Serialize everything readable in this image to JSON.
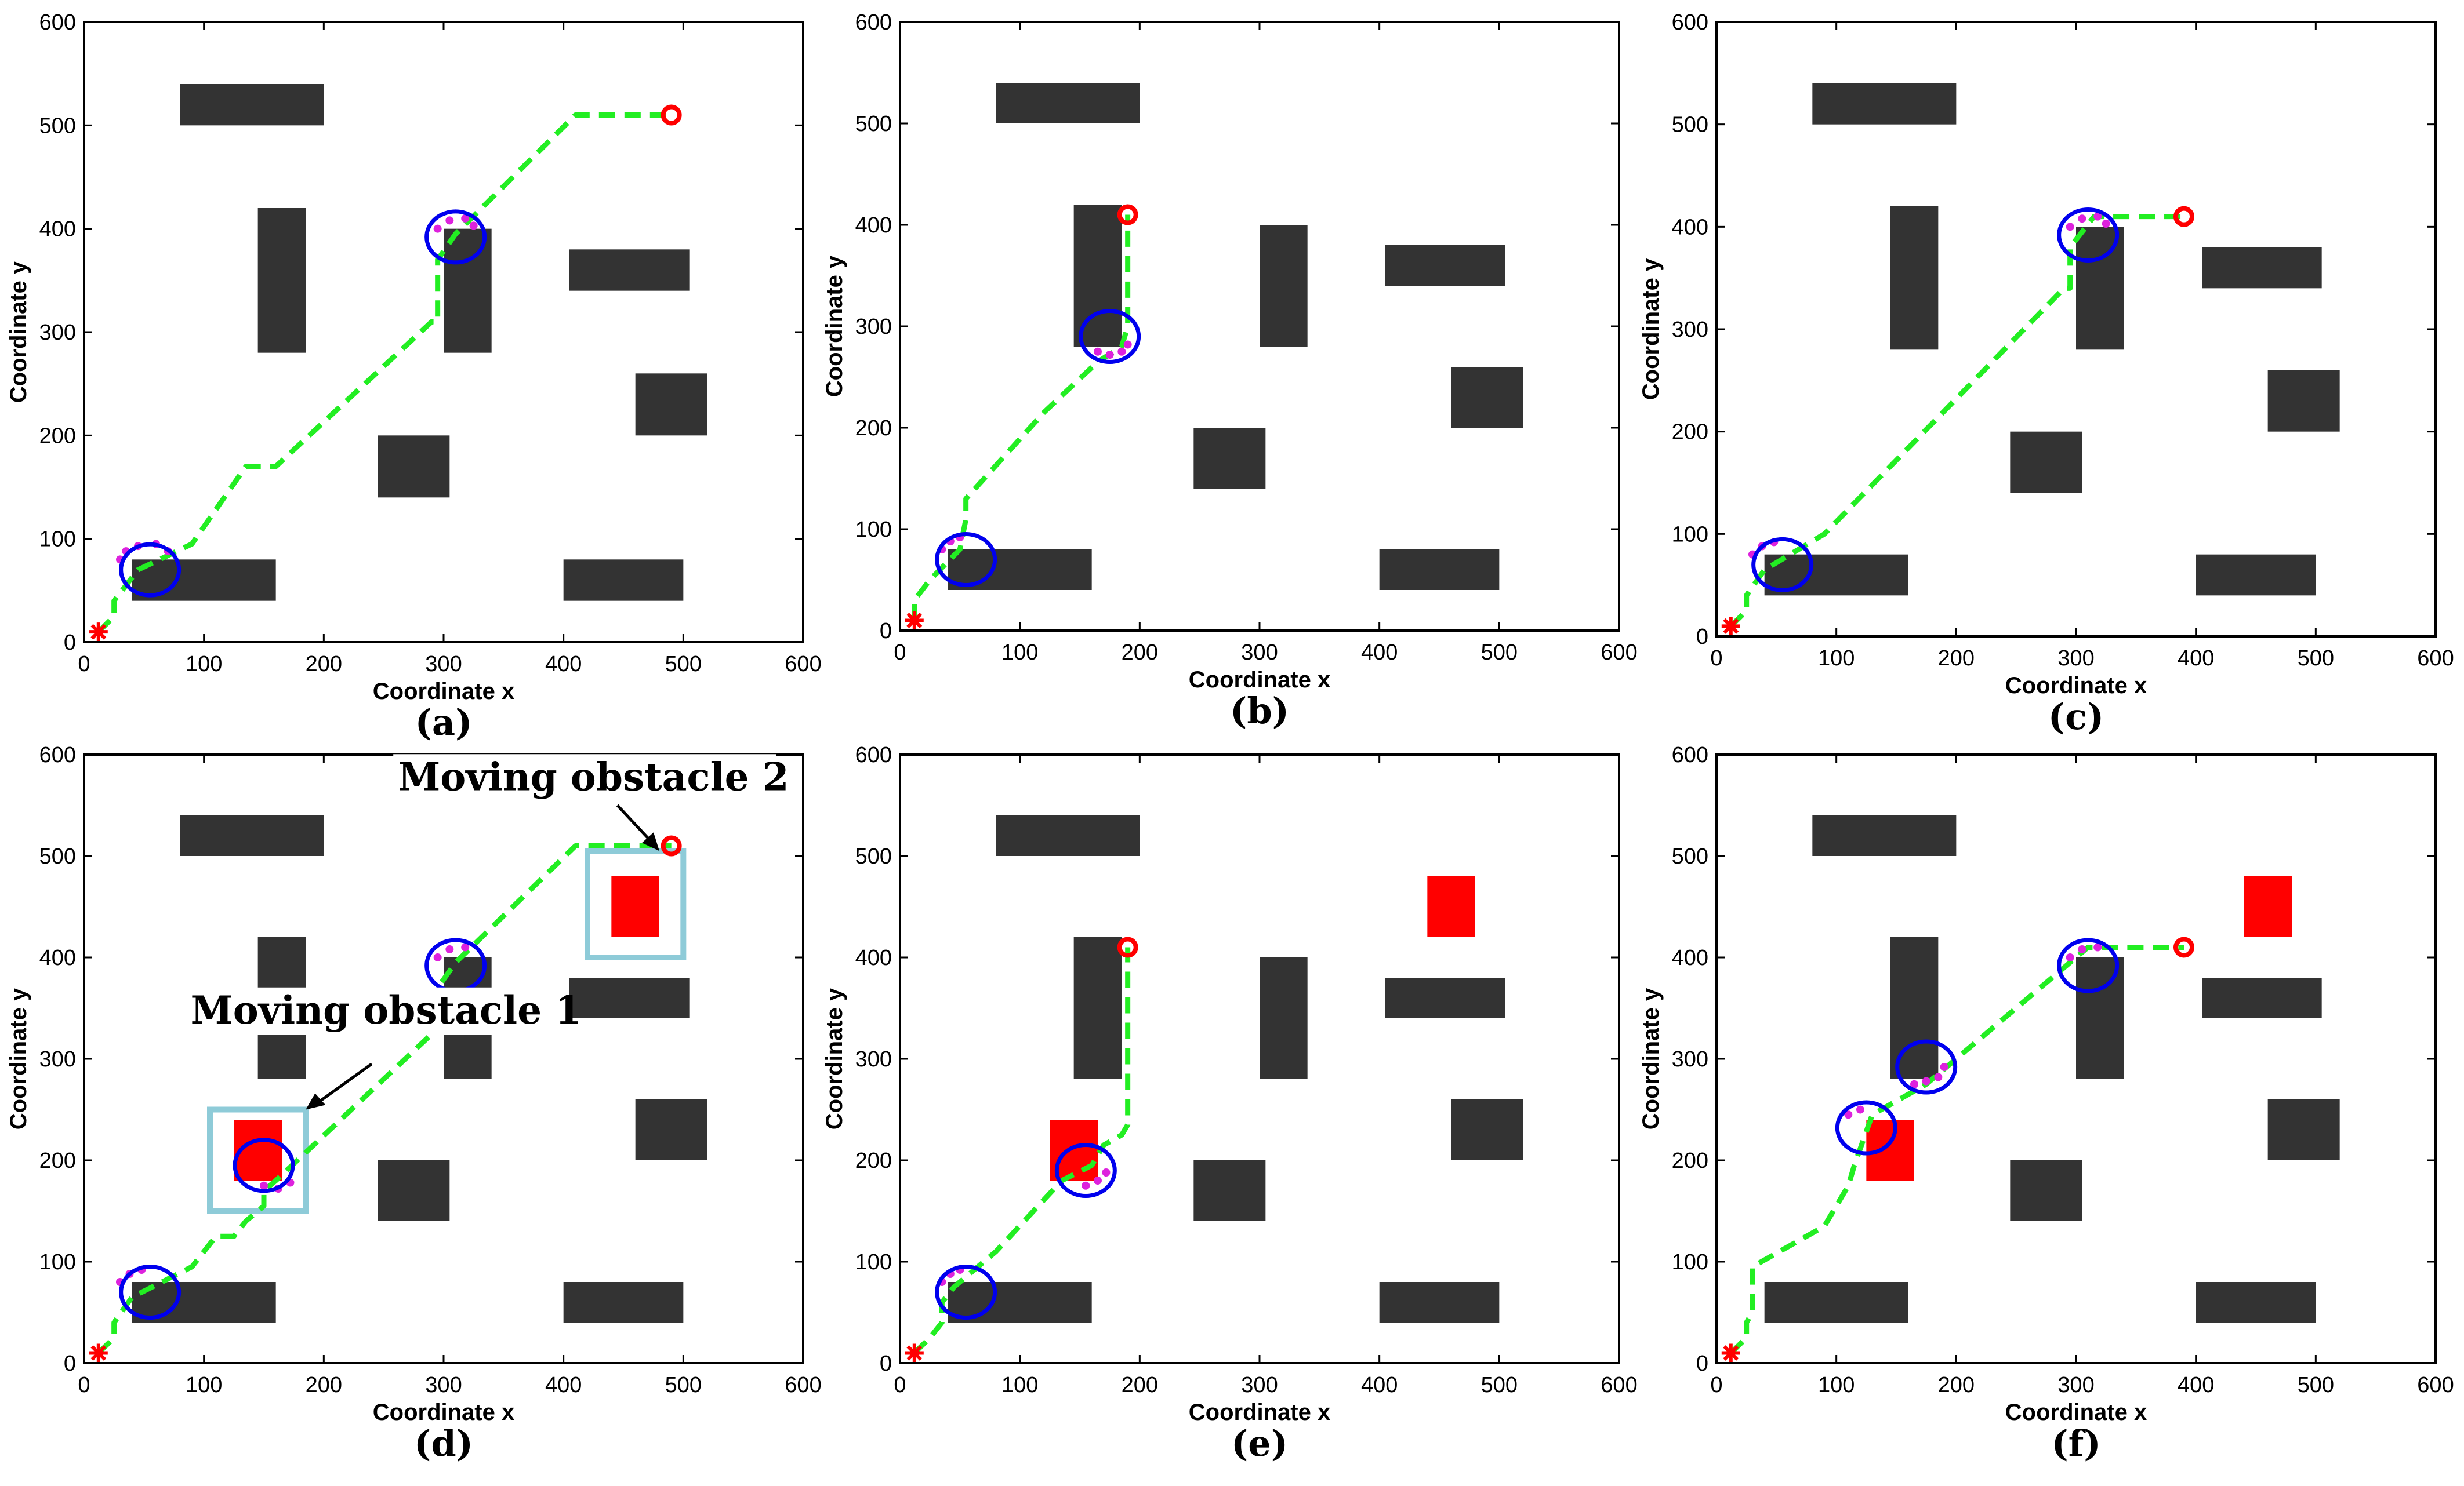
{
  "chart_data": [
    {
      "id": "a",
      "type": "scatter",
      "panel_label": "(a)",
      "xlabel": "Coordinate x",
      "ylabel": "Coordinate y",
      "xlim": [
        0,
        600
      ],
      "ylim": [
        0,
        600
      ],
      "xticks": [
        0,
        100,
        200,
        300,
        400,
        500,
        600
      ],
      "yticks": [
        0,
        100,
        200,
        300,
        400,
        500,
        600
      ],
      "grid": false,
      "start": [
        12,
        10
      ],
      "goal": [
        490,
        510
      ],
      "static_obstacles": [
        [
          80,
          500,
          200,
          540
        ],
        [
          145,
          280,
          185,
          420
        ],
        [
          245,
          140,
          305,
          200
        ],
        [
          300,
          280,
          340,
          400
        ],
        [
          40,
          40,
          160,
          80
        ],
        [
          405,
          340,
          505,
          380
        ],
        [
          460,
          200,
          520,
          260
        ],
        [
          400,
          40,
          500,
          80
        ]
      ],
      "moving_obstacles": [],
      "path": [
        [
          12,
          10
        ],
        [
          25,
          25
        ],
        [
          25,
          40
        ],
        [
          45,
          70
        ],
        [
          90,
          95
        ],
        [
          135,
          170
        ],
        [
          160,
          170
        ],
        [
          290,
          310
        ],
        [
          295,
          310
        ],
        [
          295,
          370
        ],
        [
          310,
          395
        ],
        [
          410,
          510
        ],
        [
          490,
          510
        ]
      ],
      "robots": [
        [
          55,
          70
        ],
        [
          310,
          392
        ]
      ],
      "prediction_marks": [
        [
          30,
          80
        ],
        [
          35,
          88
        ],
        [
          45,
          93
        ],
        [
          60,
          95
        ],
        [
          70,
          88
        ],
        [
          295,
          400
        ],
        [
          305,
          408
        ],
        [
          318,
          410
        ],
        [
          325,
          403
        ]
      ],
      "highlight_boxes": [],
      "annotations": []
    },
    {
      "id": "b",
      "type": "scatter",
      "panel_label": "(b)",
      "xlabel": "Coordinate x",
      "ylabel": "Coordinate y",
      "xlim": [
        0,
        600
      ],
      "ylim": [
        0,
        600
      ],
      "xticks": [
        0,
        100,
        200,
        300,
        400,
        500,
        600
      ],
      "yticks": [
        0,
        100,
        200,
        300,
        400,
        500,
        600
      ],
      "grid": false,
      "start": [
        12,
        10
      ],
      "goal": [
        190,
        410
      ],
      "static_obstacles": [
        [
          80,
          500,
          200,
          540
        ],
        [
          145,
          280,
          185,
          420
        ],
        [
          245,
          140,
          305,
          200
        ],
        [
          300,
          280,
          340,
          400
        ],
        [
          40,
          40,
          160,
          80
        ],
        [
          405,
          340,
          505,
          380
        ],
        [
          460,
          200,
          520,
          260
        ],
        [
          400,
          40,
          500,
          80
        ]
      ],
      "moving_obstacles": [],
      "path": [
        [
          12,
          10
        ],
        [
          12,
          30
        ],
        [
          25,
          50
        ],
        [
          50,
          80
        ],
        [
          55,
          110
        ],
        [
          55,
          130
        ],
        [
          120,
          215
        ],
        [
          165,
          265
        ],
        [
          185,
          280
        ],
        [
          190,
          300
        ],
        [
          190,
          410
        ]
      ],
      "robots": [
        [
          55,
          70
        ],
        [
          175,
          290
        ]
      ],
      "prediction_marks": [
        [
          35,
          80
        ],
        [
          42,
          88
        ],
        [
          50,
          92
        ],
        [
          165,
          275
        ],
        [
          175,
          272
        ],
        [
          185,
          275
        ],
        [
          190,
          282
        ]
      ],
      "highlight_boxes": [],
      "annotations": []
    },
    {
      "id": "c",
      "type": "scatter",
      "panel_label": "(c)",
      "xlabel": "Coordinate x",
      "ylabel": "Coordinate y",
      "xlim": [
        0,
        600
      ],
      "ylim": [
        0,
        600
      ],
      "xticks": [
        0,
        100,
        200,
        300,
        400,
        500,
        600
      ],
      "yticks": [
        0,
        100,
        200,
        300,
        400,
        500,
        600
      ],
      "grid": false,
      "start": [
        12,
        10
      ],
      "goal": [
        390,
        410
      ],
      "static_obstacles": [
        [
          80,
          500,
          200,
          540
        ],
        [
          145,
          280,
          185,
          420
        ],
        [
          245,
          140,
          305,
          200
        ],
        [
          300,
          280,
          340,
          400
        ],
        [
          40,
          40,
          160,
          80
        ],
        [
          405,
          340,
          505,
          380
        ],
        [
          460,
          200,
          520,
          260
        ],
        [
          400,
          40,
          500,
          80
        ]
      ],
      "moving_obstacles": [],
      "path": [
        [
          12,
          10
        ],
        [
          25,
          25
        ],
        [
          25,
          40
        ],
        [
          40,
          65
        ],
        [
          90,
          100
        ],
        [
          290,
          340
        ],
        [
          295,
          340
        ],
        [
          295,
          380
        ],
        [
          315,
          410
        ],
        [
          390,
          410
        ]
      ],
      "robots": [
        [
          55,
          70
        ],
        [
          310,
          392
        ]
      ],
      "prediction_marks": [
        [
          30,
          80
        ],
        [
          38,
          88
        ],
        [
          48,
          92
        ],
        [
          295,
          400
        ],
        [
          305,
          408
        ],
        [
          318,
          410
        ],
        [
          325,
          403
        ]
      ],
      "highlight_boxes": [],
      "annotations": []
    },
    {
      "id": "d",
      "type": "scatter",
      "panel_label": "(d)",
      "xlabel": "Coordinate x",
      "ylabel": "Coordinate y",
      "xlim": [
        0,
        600
      ],
      "ylim": [
        0,
        600
      ],
      "xticks": [
        0,
        100,
        200,
        300,
        400,
        500,
        600
      ],
      "yticks": [
        0,
        100,
        200,
        300,
        400,
        500,
        600
      ],
      "grid": false,
      "start": [
        12,
        10
      ],
      "goal": [
        490,
        510
      ],
      "static_obstacles": [
        [
          80,
          500,
          200,
          540
        ],
        [
          145,
          280,
          185,
          420
        ],
        [
          245,
          140,
          305,
          200
        ],
        [
          300,
          280,
          340,
          400
        ],
        [
          40,
          40,
          160,
          80
        ],
        [
          405,
          340,
          505,
          380
        ],
        [
          460,
          200,
          520,
          260
        ],
        [
          400,
          40,
          500,
          80
        ]
      ],
      "moving_obstacles": [
        [
          125,
          180,
          165,
          240
        ],
        [
          440,
          420,
          480,
          480
        ]
      ],
      "path": [
        [
          12,
          10
        ],
        [
          25,
          25
        ],
        [
          25,
          40
        ],
        [
          40,
          65
        ],
        [
          90,
          95
        ],
        [
          110,
          125
        ],
        [
          125,
          125
        ],
        [
          135,
          140
        ],
        [
          150,
          155
        ],
        [
          150,
          170
        ],
        [
          160,
          180
        ],
        [
          295,
          330
        ],
        [
          295,
          370
        ],
        [
          310,
          395
        ],
        [
          410,
          510
        ],
        [
          490,
          510
        ]
      ],
      "robots": [
        [
          55,
          70
        ],
        [
          150,
          195
        ],
        [
          310,
          392
        ]
      ],
      "prediction_marks": [
        [
          30,
          80
        ],
        [
          38,
          88
        ],
        [
          48,
          92
        ],
        [
          150,
          175
        ],
        [
          162,
          172
        ],
        [
          172,
          178
        ],
        [
          295,
          400
        ],
        [
          305,
          408
        ],
        [
          318,
          410
        ]
      ],
      "highlight_boxes": [
        [
          105,
          150,
          185,
          250
        ],
        [
          420,
          400,
          500,
          505
        ]
      ],
      "annotations": [
        {
          "text": "Moving obstacle 1",
          "anchor": [
            185,
            250
          ]
        },
        {
          "text": "Moving obstacle 2",
          "anchor": [
            480,
            505
          ]
        }
      ]
    },
    {
      "id": "e",
      "type": "scatter",
      "panel_label": "(e)",
      "xlabel": "Coordinate x",
      "ylabel": "Coordinate y",
      "xlim": [
        0,
        600
      ],
      "ylim": [
        0,
        600
      ],
      "xticks": [
        0,
        100,
        200,
        300,
        400,
        500,
        600
      ],
      "yticks": [
        0,
        100,
        200,
        300,
        400,
        500,
        600
      ],
      "grid": false,
      "start": [
        12,
        10
      ],
      "goal": [
        190,
        410
      ],
      "static_obstacles": [
        [
          80,
          500,
          200,
          540
        ],
        [
          145,
          280,
          185,
          420
        ],
        [
          245,
          140,
          305,
          200
        ],
        [
          300,
          280,
          340,
          400
        ],
        [
          40,
          40,
          160,
          80
        ],
        [
          405,
          340,
          505,
          380
        ],
        [
          460,
          200,
          520,
          260
        ],
        [
          400,
          40,
          500,
          80
        ]
      ],
      "moving_obstacles": [
        [
          125,
          180,
          165,
          240
        ],
        [
          440,
          420,
          480,
          480
        ]
      ],
      "path": [
        [
          12,
          10
        ],
        [
          25,
          25
        ],
        [
          35,
          40
        ],
        [
          35,
          60
        ],
        [
          45,
          75
        ],
        [
          80,
          110
        ],
        [
          135,
          180
        ],
        [
          160,
          195
        ],
        [
          170,
          215
        ],
        [
          185,
          225
        ],
        [
          190,
          235
        ],
        [
          190,
          410
        ]
      ],
      "robots": [
        [
          55,
          70
        ],
        [
          155,
          190
        ]
      ],
      "prediction_marks": [
        [
          35,
          80
        ],
        [
          42,
          88
        ],
        [
          50,
          92
        ],
        [
          155,
          175
        ],
        [
          165,
          180
        ],
        [
          172,
          188
        ]
      ],
      "highlight_boxes": [],
      "annotations": []
    },
    {
      "id": "f",
      "type": "scatter",
      "panel_label": "(f)",
      "xlabel": "Coordinate x",
      "ylabel": "Coordinate y",
      "xlim": [
        0,
        600
      ],
      "ylim": [
        0,
        600
      ],
      "xticks": [
        0,
        100,
        200,
        300,
        400,
        500,
        600
      ],
      "yticks": [
        0,
        100,
        200,
        300,
        400,
        500,
        600
      ],
      "grid": false,
      "start": [
        12,
        10
      ],
      "goal": [
        390,
        410
      ],
      "static_obstacles": [
        [
          80,
          500,
          200,
          540
        ],
        [
          145,
          280,
          185,
          420
        ],
        [
          245,
          140,
          305,
          200
        ],
        [
          300,
          280,
          340,
          400
        ],
        [
          40,
          40,
          160,
          80
        ],
        [
          405,
          340,
          505,
          380
        ],
        [
          460,
          200,
          520,
          260
        ],
        [
          400,
          40,
          500,
          80
        ]
      ],
      "moving_obstacles": [
        [
          125,
          180,
          165,
          240
        ],
        [
          440,
          420,
          480,
          480
        ]
      ],
      "path": [
        [
          12,
          10
        ],
        [
          25,
          25
        ],
        [
          25,
          40
        ],
        [
          30,
          50
        ],
        [
          30,
          95
        ],
        [
          90,
          135
        ],
        [
          110,
          175
        ],
        [
          115,
          195
        ],
        [
          130,
          245
        ],
        [
          175,
          275
        ],
        [
          200,
          300
        ],
        [
          290,
          390
        ],
        [
          310,
          410
        ],
        [
          390,
          410
        ]
      ],
      "robots": [
        [
          125,
          232
        ],
        [
          175,
          292
        ],
        [
          310,
          392
        ]
      ],
      "prediction_marks": [
        [
          110,
          245
        ],
        [
          120,
          250
        ],
        [
          165,
          275
        ],
        [
          175,
          278
        ],
        [
          185,
          282
        ],
        [
          190,
          292
        ],
        [
          295,
          400
        ],
        [
          305,
          408
        ],
        [
          318,
          410
        ]
      ],
      "highlight_boxes": [],
      "annotations": []
    }
  ]
}
